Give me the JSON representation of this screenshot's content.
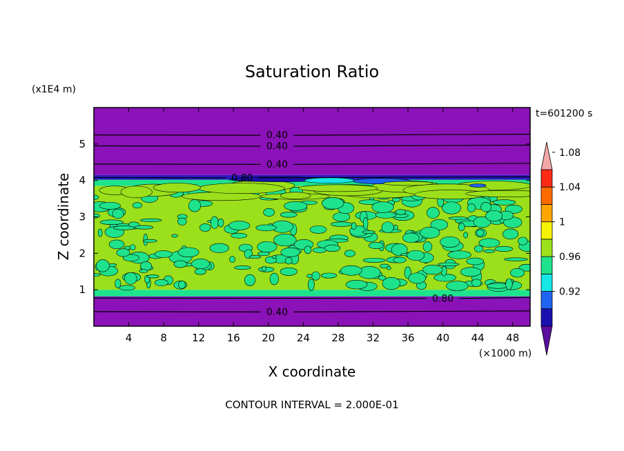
{
  "chart_data": {
    "type": "heatmap",
    "title": "Saturation Ratio",
    "xlabel": "X coordinate",
    "ylabel": "Z coordinate",
    "x_unit": "(×1000 m)",
    "y_unit": "(x1E4 m)",
    "time_label": "t=601200 s",
    "contour_interval_label": "CONTOUR INTERVAL = 2.000E-01",
    "xlim": [
      0,
      50
    ],
    "ylim": [
      0,
      6
    ],
    "x_ticks": [
      4,
      8,
      12,
      16,
      20,
      24,
      28,
      32,
      36,
      40,
      44,
      48
    ],
    "x_tick_labels": [
      "4",
      "8",
      "12",
      "16",
      "20",
      "24",
      "28",
      "32",
      "36",
      "40",
      "44",
      "48"
    ],
    "y_ticks": [
      1,
      2,
      3,
      4,
      5
    ],
    "y_tick_labels": [
      "1",
      "2",
      "3",
      "4",
      "5"
    ],
    "colorbar": {
      "levels": [
        0.92,
        0.96,
        1,
        1.04,
        1.08
      ],
      "labels": [
        "0.92",
        "0.96",
        "1",
        "1.04",
        "1.08"
      ],
      "colors": [
        "#5a0f9e",
        "#1a10b0",
        "#1f64f0",
        "#16e6e6",
        "#1ee38c",
        "#9be01a",
        "#f7f204",
        "#ffa500",
        "#ff6a00",
        "#ff2a16",
        "#f4a7a7"
      ]
    },
    "bands": [
      {
        "z_bottom": 0.0,
        "z_top": 0.72,
        "color": "#8b12b8"
      },
      {
        "z_bottom": 0.72,
        "z_top": 0.82,
        "color": "#7a16b6"
      },
      {
        "z_bottom": 0.82,
        "z_top": 1.0,
        "color": "#1ee38c"
      },
      {
        "z_bottom": 1.0,
        "z_top": 3.85,
        "color": "#9be01a"
      },
      {
        "z_bottom": 3.85,
        "z_top": 4.02,
        "color": "#1ee38c"
      },
      {
        "z_bottom": 4.02,
        "z_top": 4.15,
        "color": "#2a18c0"
      },
      {
        "z_bottom": 4.15,
        "z_top": 6.0,
        "color": "#8b12b8"
      }
    ],
    "contour_lines": [
      {
        "z": 5.25,
        "label": "0.40",
        "label_x": 21
      },
      {
        "z": 4.95,
        "label": "0.40",
        "label_x": 21
      },
      {
        "z": 4.45,
        "label": "0.40",
        "label_x": 21
      },
      {
        "z": 4.08,
        "label": "0.80",
        "label_x": 17
      },
      {
        "z": 0.77,
        "label": "0.80",
        "label_x": 40
      },
      {
        "z": 0.4,
        "label": "0.40",
        "label_x": 21
      }
    ]
  }
}
